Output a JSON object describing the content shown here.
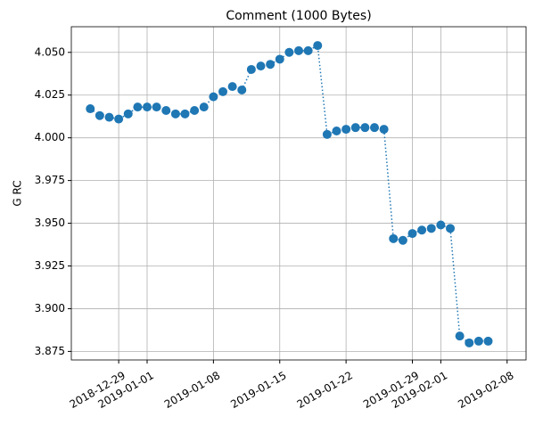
{
  "chart_data": {
    "type": "line",
    "title": "Comment (1000 Bytes)",
    "y_label": "G RC",
    "x": [
      "2018-12-26",
      "2018-12-27",
      "2018-12-28",
      "2018-12-29",
      "2018-12-30",
      "2018-12-31",
      "2019-01-01",
      "2019-01-02",
      "2019-01-03",
      "2019-01-04",
      "2019-01-05",
      "2019-01-06",
      "2019-01-07",
      "2019-01-08",
      "2019-01-09",
      "2019-01-10",
      "2019-01-11",
      "2019-01-12",
      "2019-01-13",
      "2019-01-14",
      "2019-01-15",
      "2019-01-16",
      "2019-01-17",
      "2019-01-18",
      "2019-01-19",
      "2019-01-20",
      "2019-01-21",
      "2019-01-22",
      "2019-01-23",
      "2019-01-24",
      "2019-01-25",
      "2019-01-26",
      "2019-01-27",
      "2019-01-28",
      "2019-01-29",
      "2019-01-30",
      "2019-01-31",
      "2019-02-01",
      "2019-02-02",
      "2019-02-03",
      "2019-02-04",
      "2019-02-05",
      "2019-02-06"
    ],
    "series": [
      {
        "name": "G RC",
        "color": "#1f77b4",
        "values": [
          4.017,
          4.013,
          4.012,
          4.011,
          4.014,
          4.018,
          4.018,
          4.018,
          4.016,
          4.014,
          4.014,
          4.016,
          4.018,
          4.024,
          4.027,
          4.03,
          4.028,
          4.04,
          4.042,
          4.043,
          4.046,
          4.05,
          4.051,
          4.051,
          4.054,
          4.002,
          4.004,
          4.005,
          4.006,
          4.006,
          4.006,
          4.005,
          3.941,
          3.94,
          3.944,
          3.946,
          3.947,
          3.949,
          3.947,
          3.884,
          3.88,
          3.881,
          3.881
        ]
      }
    ],
    "xlim": [
      "2018-12-24",
      "2019-02-10"
    ],
    "xticks": [
      "2018-12-29",
      "2019-01-01",
      "2019-01-08",
      "2019-01-15",
      "2019-01-22",
      "2019-01-29",
      "2019-02-01",
      "2019-02-08"
    ],
    "ylim": [
      3.87,
      4.065
    ],
    "yticks": [
      {
        "value": 3.875,
        "label": "3.875"
      },
      {
        "value": 3.9,
        "label": "3.900"
      },
      {
        "value": 3.925,
        "label": "3.925"
      },
      {
        "value": 3.95,
        "label": "3.950"
      },
      {
        "value": 3.975,
        "label": "3.975"
      },
      {
        "value": 4.0,
        "label": "4.000"
      },
      {
        "value": 4.025,
        "label": "4.025"
      },
      {
        "value": 4.05,
        "label": "4.050"
      }
    ],
    "grid": true
  }
}
